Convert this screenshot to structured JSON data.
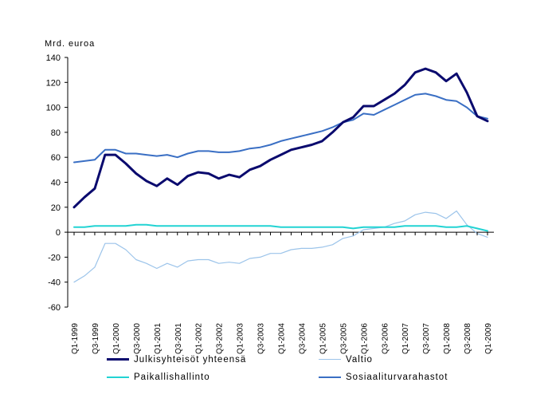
{
  "chart_data": {
    "type": "line",
    "ylabel": "Mrd. euroa",
    "ylim": [
      -60,
      140
    ],
    "yticks": [
      140,
      120,
      100,
      80,
      60,
      40,
      20,
      0,
      -20,
      -40,
      -60
    ],
    "categories": [
      "Q1-1999",
      "Q2-1999",
      "Q3-1999",
      "Q4-1999",
      "Q1-2000",
      "Q2-2000",
      "Q3-2000",
      "Q4-2000",
      "Q1-2001",
      "Q2-2001",
      "Q3-2001",
      "Q4-2001",
      "Q1-2002",
      "Q2-2002",
      "Q3-2002",
      "Q4-2002",
      "Q1-2003",
      "Q2-2003",
      "Q3-2003",
      "Q4-2003",
      "Q1-2004",
      "Q2-2004",
      "Q3-2004",
      "Q4-2004",
      "Q1-2005",
      "Q2-2005",
      "Q3-2005",
      "Q4-2005",
      "Q1-2006",
      "Q2-2006",
      "Q3-2006",
      "Q4-2006",
      "Q1-2007",
      "Q2-2007",
      "Q3-2007",
      "Q4-2007",
      "Q1-2008",
      "Q2-2008",
      "Q3-2008",
      "Q4-2008",
      "Q1-2009"
    ],
    "xtick_labels": [
      "Q1-1999",
      "Q3-1999",
      "Q1-2000",
      "Q3-2000",
      "Q1-2001",
      "Q3-2001",
      "Q1-2002",
      "Q3-2002",
      "Q1-2003",
      "Q3-2003",
      "Q1-2004",
      "Q3-2004",
      "Q1-2005",
      "Q3-2005",
      "Q1-2006",
      "Q3-2006",
      "Q1-2007",
      "Q3-2007",
      "Q1-2008",
      "Q3-2008",
      "Q1-2009"
    ],
    "series": [
      {
        "name": "Julkisyhteisöt yhteensä",
        "color": "#0a0a6e",
        "width": 3,
        "values": [
          20,
          28,
          35,
          62,
          62,
          55,
          47,
          41,
          37,
          43,
          38,
          45,
          48,
          47,
          43,
          46,
          44,
          50,
          53,
          58,
          62,
          66,
          68,
          70,
          73,
          80,
          88,
          92,
          101,
          101,
          106,
          111,
          118,
          128,
          131,
          128,
          121,
          127,
          112,
          93,
          89
        ]
      },
      {
        "name": "Valtio",
        "color": "#9cc4ea",
        "width": 1.2,
        "values": [
          -40,
          -35,
          -28,
          -9,
          -9,
          -14,
          -22,
          -25,
          -29,
          -25,
          -28,
          -23,
          -22,
          -22,
          -25,
          -24,
          -25,
          -21,
          -20,
          -17,
          -17,
          -14,
          -13,
          -13,
          -12,
          -10,
          -5,
          -3,
          2,
          3,
          4,
          7,
          9,
          14,
          16,
          15,
          11,
          17,
          6,
          -1,
          -4
        ]
      },
      {
        "name": "Paikallishallinto",
        "color": "#22d3d3",
        "width": 2,
        "values": [
          4,
          4,
          5,
          5,
          5,
          5,
          6,
          6,
          5,
          5,
          5,
          5,
          5,
          5,
          5,
          5,
          5,
          5,
          5,
          5,
          4,
          4,
          4,
          4,
          4,
          4,
          4,
          3,
          4,
          4,
          4,
          4,
          5,
          5,
          5,
          5,
          4,
          4,
          5,
          3,
          1
        ]
      },
      {
        "name": "Sosiaaliturvarahastot",
        "color": "#3a6fc4",
        "width": 2,
        "values": [
          56,
          57,
          58,
          66,
          66,
          63,
          63,
          62,
          61,
          62,
          60,
          63,
          65,
          65,
          64,
          64,
          65,
          67,
          68,
          70,
          73,
          75,
          77,
          79,
          81,
          84,
          88,
          90,
          95,
          94,
          98,
          102,
          106,
          110,
          111,
          109,
          106,
          105,
          100,
          93,
          91
        ]
      }
    ]
  },
  "legend": [
    {
      "label": "Julkisyhteisöt yhteensä",
      "color": "#0a0a6e"
    },
    {
      "label": "Valtio",
      "color": "#9cc4ea"
    },
    {
      "label": "Paikallishallinto",
      "color": "#22d3d3"
    },
    {
      "label": "Sosiaaliturvarahastot",
      "color": "#3a6fc4"
    }
  ]
}
